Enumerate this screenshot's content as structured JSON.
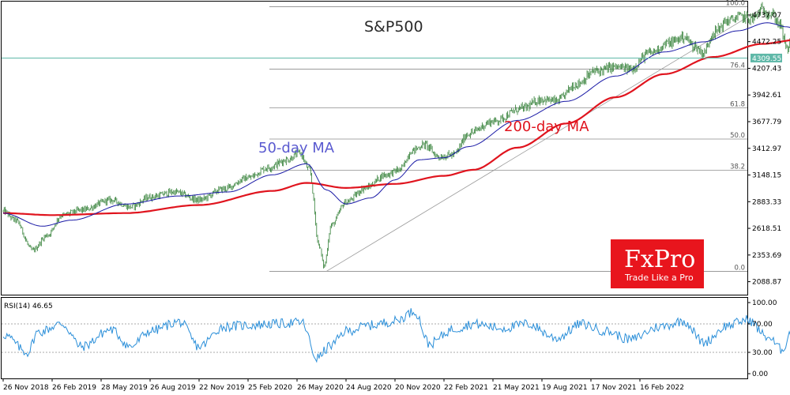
{
  "chart_data": [
    {
      "type": "candlestick",
      "title": "S&P500",
      "annotations": {
        "ma50_label": "50-day MA",
        "ma200_label": "200-day MA"
      },
      "y_ticks": [
        "4737.07",
        "4472.25",
        "4207.43",
        "3942.61",
        "3677.79",
        "3412.97",
        "3148.15",
        "2883.33",
        "2618.51",
        "2353.69",
        "2088.87"
      ],
      "ylim": [
        1960,
        4870
      ],
      "x_ticks": [
        "26 Nov 2018",
        "26 Feb 2019",
        "28 May 2019",
        "26 Aug 2019",
        "22 Nov 2019",
        "25 Feb 2020",
        "26 May 2020",
        "24 Aug 2020",
        "20 Nov 2020",
        "22 Feb 2021",
        "21 May 2021",
        "19 Aug 2021",
        "17 Nov 2021",
        "16 Feb 2022"
      ],
      "current_price": "4309.55",
      "current_price_value": 4309.55,
      "fibonacci": {
        "low": 2191.86,
        "high": 4818.62,
        "levels": [
          {
            "label": "100.0",
            "ratio": 1.0
          },
          {
            "label": "76.4",
            "ratio": 0.764
          },
          {
            "label": "61.8",
            "ratio": 0.618
          },
          {
            "label": "50.0",
            "ratio": 0.5
          },
          {
            "label": "38.2",
            "ratio": 0.382
          },
          {
            "label": "0.0",
            "ratio": 0.0
          }
        ]
      },
      "price_keypoints": [
        {
          "x": 0.0,
          "y": 2790
        },
        {
          "x": 0.25,
          "y": 2700
        },
        {
          "x": 0.6,
          "y": 2400
        },
        {
          "x": 0.9,
          "y": 2550
        },
        {
          "x": 1.2,
          "y": 2750
        },
        {
          "x": 1.6,
          "y": 2800
        },
        {
          "x": 2.2,
          "y": 2900
        },
        {
          "x": 2.6,
          "y": 2830
        },
        {
          "x": 3.0,
          "y": 2930
        },
        {
          "x": 3.5,
          "y": 2980
        },
        {
          "x": 4.0,
          "y": 2900
        },
        {
          "x": 4.5,
          "y": 3010
        },
        {
          "x": 5.0,
          "y": 3120
        },
        {
          "x": 5.4,
          "y": 3220
        },
        {
          "x": 5.8,
          "y": 3300
        },
        {
          "x": 6.05,
          "y": 3370
        },
        {
          "x": 6.25,
          "y": 3200
        },
        {
          "x": 6.45,
          "y": 2450
        },
        {
          "x": 6.55,
          "y": 2240
        },
        {
          "x": 6.7,
          "y": 2650
        },
        {
          "x": 7.0,
          "y": 2880
        },
        {
          "x": 7.4,
          "y": 3020
        },
        {
          "x": 7.8,
          "y": 3150
        },
        {
          "x": 8.1,
          "y": 3200
        },
        {
          "x": 8.35,
          "y": 3390
        },
        {
          "x": 8.6,
          "y": 3450
        },
        {
          "x": 8.9,
          "y": 3330
        },
        {
          "x": 9.2,
          "y": 3350
        },
        {
          "x": 9.5,
          "y": 3560
        },
        {
          "x": 10.0,
          "y": 3680
        },
        {
          "x": 10.6,
          "y": 3810
        },
        {
          "x": 11.0,
          "y": 3900
        },
        {
          "x": 11.3,
          "y": 3880
        },
        {
          "x": 11.7,
          "y": 4050
        },
        {
          "x": 12.1,
          "y": 4180
        },
        {
          "x": 12.5,
          "y": 4220
        },
        {
          "x": 12.8,
          "y": 4200
        },
        {
          "x": 13.2,
          "y": 4360
        },
        {
          "x": 13.6,
          "y": 4460
        },
        {
          "x": 13.9,
          "y": 4520
        },
        {
          "x": 14.1,
          "y": 4430
        },
        {
          "x": 14.3,
          "y": 4360
        },
        {
          "x": 14.5,
          "y": 4560
        },
        {
          "x": 14.8,
          "y": 4680
        },
        {
          "x": 15.05,
          "y": 4720
        },
        {
          "x": 15.3,
          "y": 4700
        },
        {
          "x": 15.5,
          "y": 4790
        },
        {
          "x": 15.7,
          "y": 4740
        },
        {
          "x": 15.85,
          "y": 4650
        },
        {
          "x": 16.0,
          "y": 4400
        },
        {
          "x": 16.15,
          "y": 4530
        },
        {
          "x": 16.3,
          "y": 4380
        },
        {
          "x": 16.45,
          "y": 4220
        },
        {
          "x": 16.55,
          "y": 4180
        },
        {
          "x": 16.65,
          "y": 4300
        }
      ],
      "ma50_keypoints": [
        {
          "x": 0.0,
          "y": 2770
        },
        {
          "x": 0.8,
          "y": 2640
        },
        {
          "x": 1.4,
          "y": 2700
        },
        {
          "x": 2.5,
          "y": 2860
        },
        {
          "x": 3.6,
          "y": 2940
        },
        {
          "x": 4.6,
          "y": 2980
        },
        {
          "x": 5.5,
          "y": 3150
        },
        {
          "x": 6.2,
          "y": 3260
        },
        {
          "x": 6.6,
          "y": 3000
        },
        {
          "x": 7.0,
          "y": 2860
        },
        {
          "x": 7.5,
          "y": 2920
        },
        {
          "x": 8.0,
          "y": 3100
        },
        {
          "x": 8.5,
          "y": 3300
        },
        {
          "x": 9.0,
          "y": 3320
        },
        {
          "x": 9.5,
          "y": 3430
        },
        {
          "x": 10.5,
          "y": 3690
        },
        {
          "x": 11.5,
          "y": 3880
        },
        {
          "x": 12.5,
          "y": 4130
        },
        {
          "x": 13.5,
          "y": 4370
        },
        {
          "x": 14.3,
          "y": 4470
        },
        {
          "x": 15.0,
          "y": 4580
        },
        {
          "x": 15.6,
          "y": 4660
        },
        {
          "x": 16.0,
          "y": 4620
        },
        {
          "x": 16.4,
          "y": 4530
        },
        {
          "x": 16.65,
          "y": 4490
        }
      ],
      "ma200_keypoints": [
        {
          "x": 0.0,
          "y": 2770
        },
        {
          "x": 1.0,
          "y": 2750
        },
        {
          "x": 2.5,
          "y": 2770
        },
        {
          "x": 4.0,
          "y": 2850
        },
        {
          "x": 5.5,
          "y": 2990
        },
        {
          "x": 6.2,
          "y": 3070
        },
        {
          "x": 7.0,
          "y": 3020
        },
        {
          "x": 8.0,
          "y": 3060
        },
        {
          "x": 9.0,
          "y": 3140
        },
        {
          "x": 9.6,
          "y": 3200
        },
        {
          "x": 10.5,
          "y": 3420
        },
        {
          "x": 11.5,
          "y": 3660
        },
        {
          "x": 12.5,
          "y": 3920
        },
        {
          "x": 13.5,
          "y": 4150
        },
        {
          "x": 14.5,
          "y": 4320
        },
        {
          "x": 15.5,
          "y": 4450
        },
        {
          "x": 16.2,
          "y": 4490
        },
        {
          "x": 16.65,
          "y": 4490
        }
      ],
      "trendline": {
        "from": {
          "x": 6.6,
          "y": 2191.86
        },
        "to": {
          "x": 15.55,
          "y": 4818.62
        }
      }
    },
    {
      "type": "line",
      "title": "RSI(14) 46.65",
      "indicator": "RSI",
      "period": 14,
      "current_value": 46.65,
      "ylim": [
        0,
        100
      ],
      "y_ticks": [
        "100.00",
        "70.00",
        "30.00",
        "0.00"
      ],
      "levels": [
        70,
        30
      ],
      "rsi_keypoints": [
        {
          "x": 0.0,
          "y": 55
        },
        {
          "x": 0.5,
          "y": 30
        },
        {
          "x": 0.7,
          "y": 58
        },
        {
          "x": 1.2,
          "y": 70
        },
        {
          "x": 1.6,
          "y": 38
        },
        {
          "x": 2.2,
          "y": 62
        },
        {
          "x": 2.6,
          "y": 38
        },
        {
          "x": 3.0,
          "y": 60
        },
        {
          "x": 3.6,
          "y": 73
        },
        {
          "x": 4.0,
          "y": 38
        },
        {
          "x": 4.5,
          "y": 66
        },
        {
          "x": 5.0,
          "y": 68
        },
        {
          "x": 5.5,
          "y": 70
        },
        {
          "x": 6.1,
          "y": 72
        },
        {
          "x": 6.4,
          "y": 22
        },
        {
          "x": 6.7,
          "y": 40
        },
        {
          "x": 7.0,
          "y": 60
        },
        {
          "x": 7.5,
          "y": 68
        },
        {
          "x": 8.0,
          "y": 74
        },
        {
          "x": 8.4,
          "y": 88
        },
        {
          "x": 8.7,
          "y": 42
        },
        {
          "x": 9.2,
          "y": 63
        },
        {
          "x": 9.6,
          "y": 70
        },
        {
          "x": 10.2,
          "y": 64
        },
        {
          "x": 10.7,
          "y": 70
        },
        {
          "x": 11.3,
          "y": 50
        },
        {
          "x": 11.8,
          "y": 70
        },
        {
          "x": 12.3,
          "y": 60
        },
        {
          "x": 12.8,
          "y": 48
        },
        {
          "x": 13.4,
          "y": 66
        },
        {
          "x": 13.9,
          "y": 74
        },
        {
          "x": 14.3,
          "y": 44
        },
        {
          "x": 14.8,
          "y": 68
        },
        {
          "x": 15.2,
          "y": 76
        },
        {
          "x": 15.6,
          "y": 52
        },
        {
          "x": 15.9,
          "y": 34
        },
        {
          "x": 16.1,
          "y": 60
        },
        {
          "x": 16.35,
          "y": 30
        },
        {
          "x": 16.55,
          "y": 44
        },
        {
          "x": 16.65,
          "y": 46.65
        }
      ]
    }
  ],
  "logo": {
    "brand": "FxPro",
    "tagline": "Trade Like a Pro",
    "color": "#e8151d"
  },
  "colors": {
    "candle": "#2e7d32",
    "ma50": "#1a1aa6",
    "ma200": "#e0141e",
    "rsi_line": "#2b8fd9",
    "current_price_line": "#5fb8a8",
    "fib_line": "#8c8c8c",
    "trendline": "#9a9a9a"
  }
}
